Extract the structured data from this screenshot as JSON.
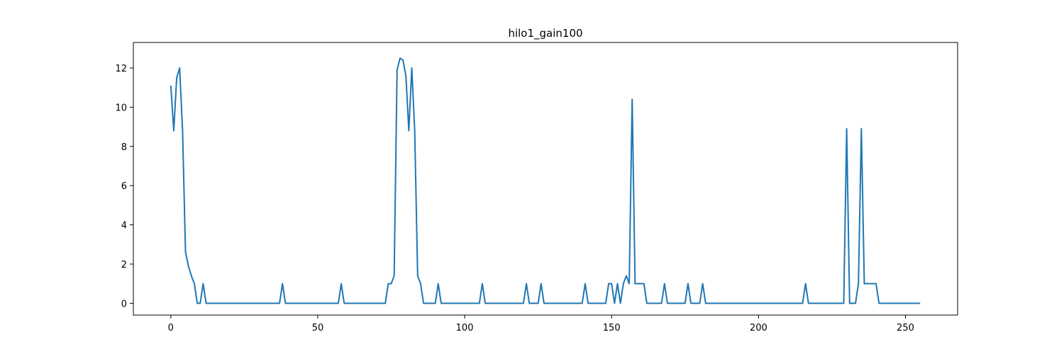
{
  "chart_data": {
    "type": "line",
    "title": "hilo1_gain100",
    "xlabel": "",
    "ylabel": "",
    "xlim": [
      -12.75,
      267.75
    ],
    "ylim": [
      -0.6,
      13.3
    ],
    "grid": false,
    "x_ticks": [
      0,
      50,
      100,
      150,
      200,
      250
    ],
    "y_ticks": [
      0,
      2,
      4,
      6,
      8,
      10,
      12
    ],
    "series": [
      {
        "color": "#1f77b4",
        "x": [
          0,
          1,
          2,
          3,
          4,
          5,
          6,
          7,
          8,
          9,
          10,
          11,
          12,
          13,
          37,
          38,
          39,
          57,
          58,
          59,
          73,
          74,
          75,
          76,
          77,
          78,
          79,
          80,
          81,
          82,
          83,
          84,
          85,
          86,
          90,
          91,
          92,
          105,
          106,
          107,
          120,
          121,
          122,
          125,
          126,
          127,
          140,
          141,
          142,
          148,
          149,
          150,
          151,
          152,
          153,
          154,
          155,
          156,
          157,
          158,
          159,
          160,
          161,
          162,
          167,
          168,
          169,
          175,
          176,
          177,
          180,
          181,
          182,
          215,
          216,
          217,
          229,
          230,
          231,
          232,
          233,
          234,
          235,
          236,
          237,
          238,
          239,
          240,
          241,
          255
        ],
        "y": [
          11.1,
          8.8,
          11.5,
          12.0,
          8.8,
          2.6,
          1.9,
          1.4,
          1.0,
          0,
          0,
          1.0,
          0,
          0,
          0,
          1.0,
          0,
          0,
          1.0,
          0,
          0,
          1.0,
          1.0,
          1.4,
          11.9,
          12.5,
          12.4,
          11.6,
          8.8,
          12.0,
          8.8,
          1.4,
          1.0,
          0,
          0,
          1.0,
          0,
          0,
          1.0,
          0,
          0,
          1.0,
          0,
          0,
          1.0,
          0,
          0,
          1.0,
          0,
          0,
          1.0,
          1.0,
          0,
          1.0,
          0,
          1.0,
          1.4,
          1.0,
          10.4,
          1.0,
          1.0,
          1.0,
          1.0,
          0,
          0,
          1.0,
          0,
          0,
          1.0,
          0,
          0,
          1.0,
          0,
          0,
          1.0,
          0,
          0,
          8.9,
          0,
          0,
          0,
          1.0,
          8.9,
          1.0,
          1.0,
          1.0,
          1.0,
          1.0,
          0,
          0
        ]
      }
    ]
  }
}
